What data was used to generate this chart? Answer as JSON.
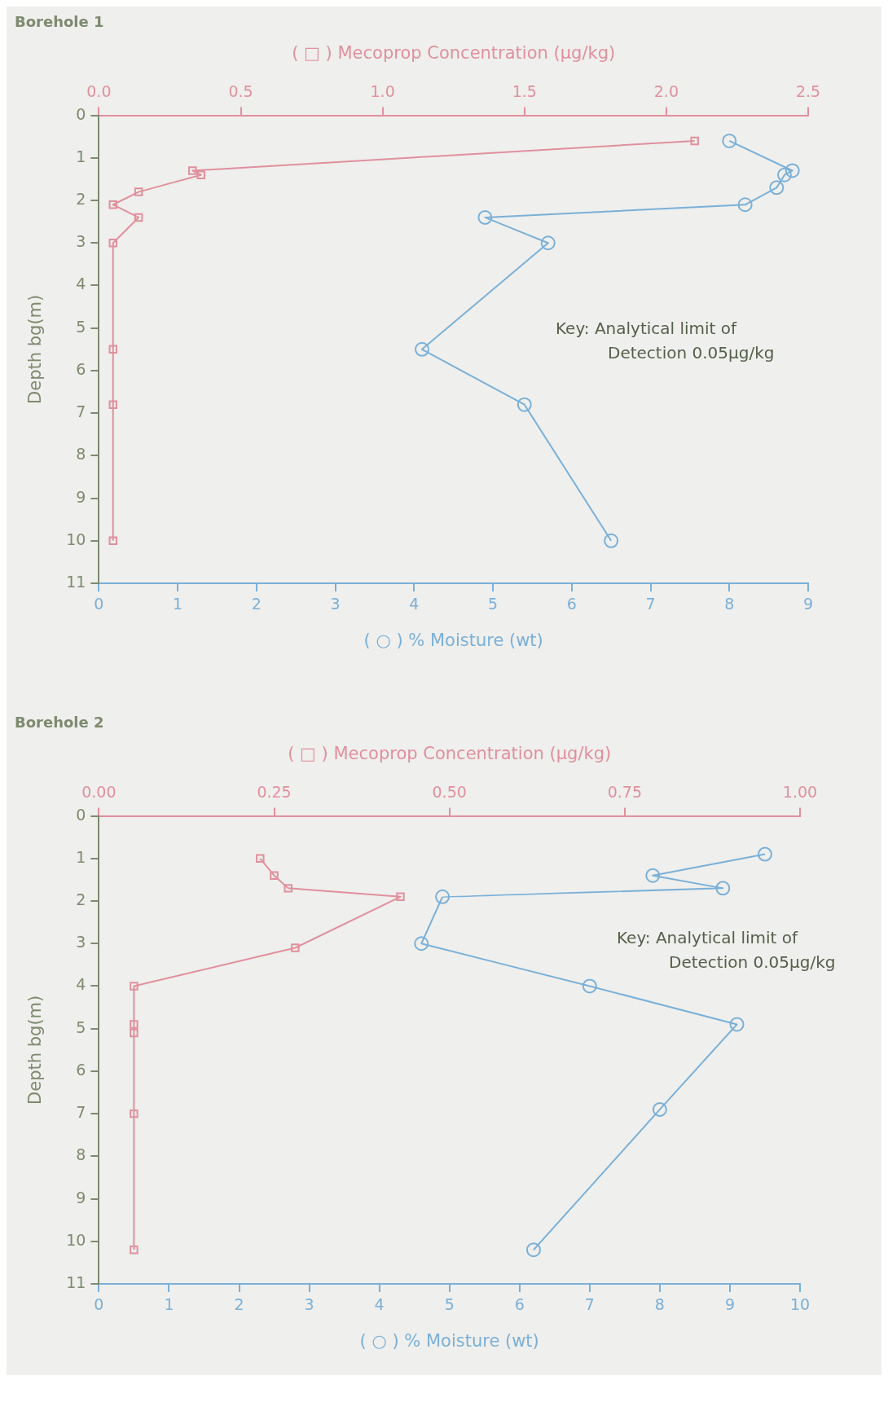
{
  "chart_data": [
    {
      "type": "line",
      "title": "Borehole 1",
      "xlabel": "( ○ ) % Moisture (wt)",
      "x2label": "( □ ) Mecoprop Concentration (μg/kg)",
      "ylabel": "Depth bg(m)",
      "xlim": [
        0,
        9
      ],
      "xticks": [
        0,
        1,
        2,
        3,
        4,
        5,
        6,
        7,
        8,
        9
      ],
      "x2lim": [
        0,
        2.5
      ],
      "x2ticks": [
        {
          "value": 0,
          "label": "0.0"
        },
        {
          "value": 0.5,
          "label": "0.5"
        },
        {
          "value": 1,
          "label": "1.0"
        },
        {
          "value": 1.5,
          "label": "1.5"
        },
        {
          "value": 2,
          "label": "2.0"
        },
        {
          "value": 2.5,
          "label": "2.5"
        }
      ],
      "ylim": [
        11,
        0
      ],
      "yticks": [
        0,
        1,
        2,
        3,
        4,
        5,
        6,
        7,
        8,
        9,
        10,
        11
      ],
      "grid": false,
      "legend": false,
      "line_style": "solid",
      "annotations": [
        "Key: Analytical limit of Detection 0.05μg/kg"
      ],
      "series": [
        {
          "color": "#e0909c",
          "axis": "x2",
          "marker": "square",
          "x": [
            2.1,
            0.33,
            0.36,
            0.14,
            0.05,
            0.14,
            0.05,
            0.05,
            0.05,
            0.05
          ],
          "values": [
            0.6,
            1.3,
            1.4,
            1.8,
            2.1,
            2.4,
            3.0,
            5.5,
            6.8,
            10.0
          ]
        },
        {
          "color": "#7ab0d8",
          "marker": "circle",
          "x": [
            8.0,
            8.8,
            8.7,
            8.6,
            8.2,
            4.9,
            5.7,
            4.1,
            5.4,
            6.5
          ],
          "values": [
            0.6,
            1.3,
            1.4,
            1.7,
            2.1,
            2.4,
            3.0,
            5.5,
            6.8,
            10.0
          ]
        }
      ]
    },
    {
      "type": "line",
      "title": "Borehole 2",
      "xlabel": "( ○ ) % Moisture (wt)",
      "x2label": "( □ ) Mecoprop Concentration (μg/kg)",
      "ylabel": "Depth bg(m)",
      "xlim": [
        0,
        10
      ],
      "xticks": [
        0,
        1,
        2,
        3,
        4,
        5,
        6,
        7,
        8,
        9,
        10
      ],
      "x2lim": [
        0,
        1
      ],
      "x2ticks": [
        {
          "value": 0,
          "label": "0.00"
        },
        {
          "value": 0.25,
          "label": "0.25"
        },
        {
          "value": 0.5,
          "label": "0.50"
        },
        {
          "value": 0.75,
          "label": "0.75"
        },
        {
          "value": 1,
          "label": "1.00"
        }
      ],
      "ylim": [
        11,
        0
      ],
      "yticks": [
        0,
        1,
        2,
        3,
        4,
        5,
        6,
        7,
        8,
        9,
        10,
        11
      ],
      "grid": false,
      "legend": false,
      "line_style": "solid",
      "annotations": [
        "Key: Analytical limit of Detection 0.05μg/kg"
      ],
      "series": [
        {
          "color": "#e0909c",
          "axis": "x2",
          "marker": "square",
          "x": [
            0.23,
            0.25,
            0.27,
            0.43,
            0.28,
            0.05,
            0.05,
            0.05,
            0.05,
            0.05
          ],
          "values": [
            1.0,
            1.4,
            1.7,
            1.9,
            3.1,
            4.0,
            4.9,
            5.1,
            7.0,
            10.2
          ]
        },
        {
          "color": "#7ab0d8",
          "marker": "circle",
          "x": [
            9.5,
            7.9,
            8.9,
            4.9,
            4.6,
            7.0,
            9.1,
            8.0,
            6.2
          ],
          "values": [
            0.9,
            1.4,
            1.7,
            1.9,
            3.0,
            4.0,
            4.9,
            6.9,
            10.2
          ]
        }
      ]
    }
  ]
}
